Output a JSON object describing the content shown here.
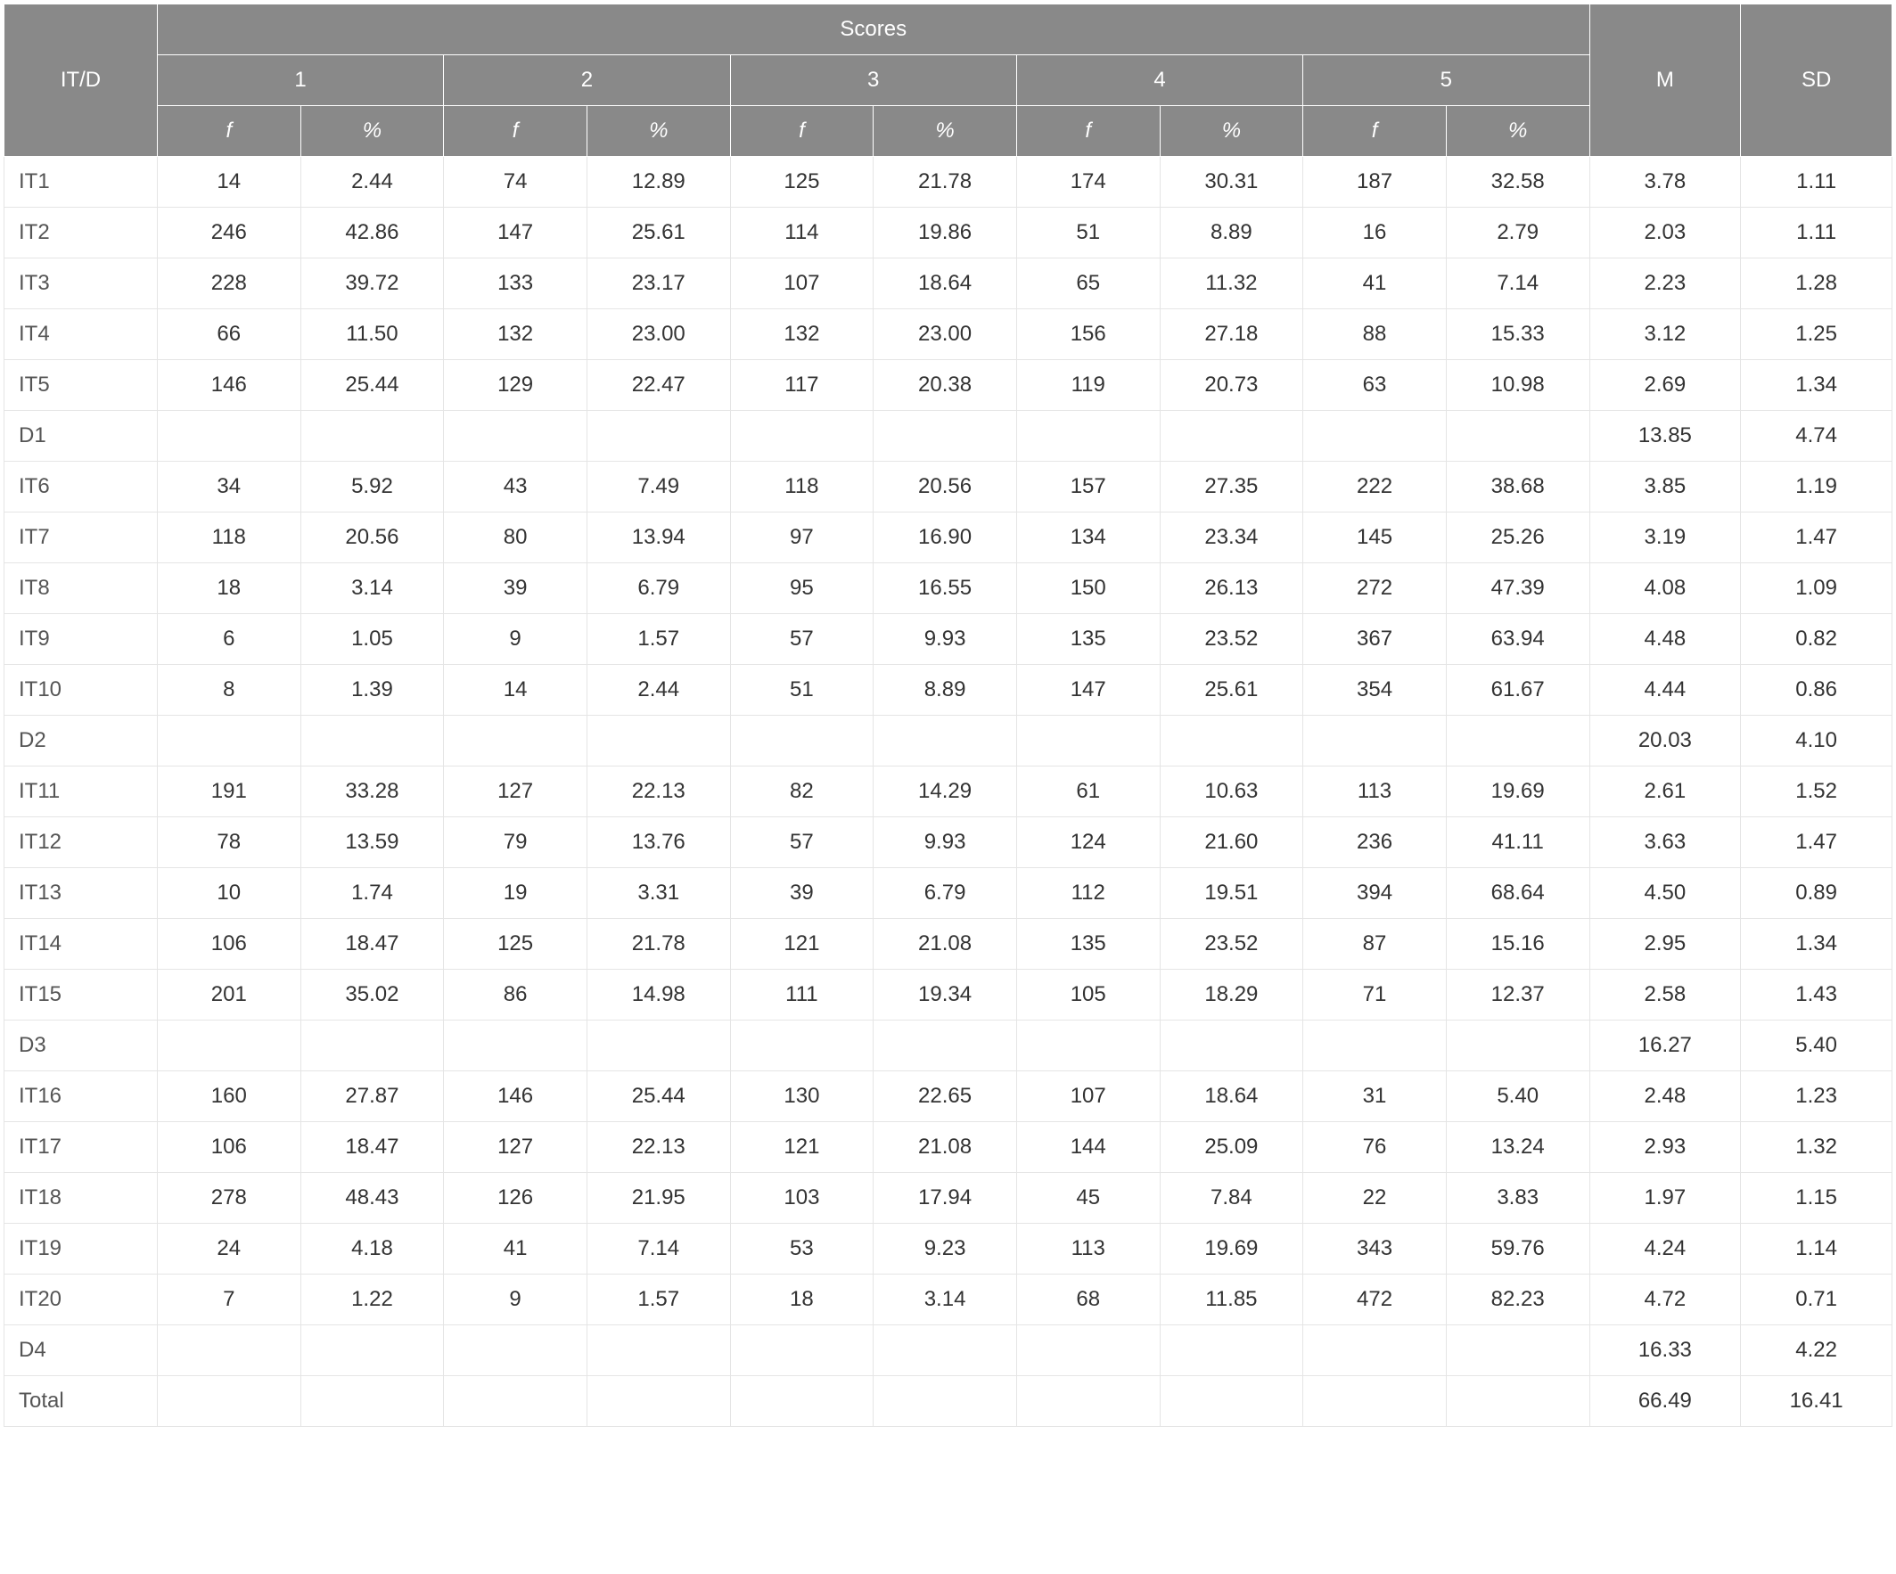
{
  "header": {
    "corner": "IT/D",
    "scores": "Scores",
    "m": "M",
    "sd": "SD",
    "groups": [
      "1",
      "2",
      "3",
      "4",
      "5"
    ],
    "sub": {
      "f": "f",
      "pct": "%"
    }
  },
  "rows": [
    {
      "label": "IT1",
      "cells": [
        "14",
        "2.44",
        "74",
        "12.89",
        "125",
        "21.78",
        "174",
        "30.31",
        "187",
        "32.58"
      ],
      "m": "3.78",
      "sd": "1.11"
    },
    {
      "label": "IT2",
      "cells": [
        "246",
        "42.86",
        "147",
        "25.61",
        "114",
        "19.86",
        "51",
        "8.89",
        "16",
        "2.79"
      ],
      "m": "2.03",
      "sd": "1.11"
    },
    {
      "label": "IT3",
      "cells": [
        "228",
        "39.72",
        "133",
        "23.17",
        "107",
        "18.64",
        "65",
        "11.32",
        "41",
        "7.14"
      ],
      "m": "2.23",
      "sd": "1.28"
    },
    {
      "label": "IT4",
      "cells": [
        "66",
        "11.50",
        "132",
        "23.00",
        "132",
        "23.00",
        "156",
        "27.18",
        "88",
        "15.33"
      ],
      "m": "3.12",
      "sd": "1.25"
    },
    {
      "label": "IT5",
      "cells": [
        "146",
        "25.44",
        "129",
        "22.47",
        "117",
        "20.38",
        "119",
        "20.73",
        "63",
        "10.98"
      ],
      "m": "2.69",
      "sd": "1.34"
    },
    {
      "label": "D1",
      "cells": [
        "",
        "",
        "",
        "",
        "",
        "",
        "",
        "",
        "",
        ""
      ],
      "m": "13.85",
      "sd": "4.74"
    },
    {
      "label": "IT6",
      "cells": [
        "34",
        "5.92",
        "43",
        "7.49",
        "118",
        "20.56",
        "157",
        "27.35",
        "222",
        "38.68"
      ],
      "m": "3.85",
      "sd": "1.19"
    },
    {
      "label": "IT7",
      "cells": [
        "118",
        "20.56",
        "80",
        "13.94",
        "97",
        "16.90",
        "134",
        "23.34",
        "145",
        "25.26"
      ],
      "m": "3.19",
      "sd": "1.47"
    },
    {
      "label": "IT8",
      "cells": [
        "18",
        "3.14",
        "39",
        "6.79",
        "95",
        "16.55",
        "150",
        "26.13",
        "272",
        "47.39"
      ],
      "m": "4.08",
      "sd": "1.09"
    },
    {
      "label": "IT9",
      "cells": [
        "6",
        "1.05",
        "9",
        "1.57",
        "57",
        "9.93",
        "135",
        "23.52",
        "367",
        "63.94"
      ],
      "m": "4.48",
      "sd": "0.82"
    },
    {
      "label": "IT10",
      "cells": [
        "8",
        "1.39",
        "14",
        "2.44",
        "51",
        "8.89",
        "147",
        "25.61",
        "354",
        "61.67"
      ],
      "m": "4.44",
      "sd": "0.86"
    },
    {
      "label": "D2",
      "cells": [
        "",
        "",
        "",
        "",
        "",
        "",
        "",
        "",
        "",
        ""
      ],
      "m": "20.03",
      "sd": "4.10"
    },
    {
      "label": "IT11",
      "cells": [
        "191",
        "33.28",
        "127",
        "22.13",
        "82",
        "14.29",
        "61",
        "10.63",
        "113",
        "19.69"
      ],
      "m": "2.61",
      "sd": "1.52"
    },
    {
      "label": "IT12",
      "cells": [
        "78",
        "13.59",
        "79",
        "13.76",
        "57",
        "9.93",
        "124",
        "21.60",
        "236",
        "41.11"
      ],
      "m": "3.63",
      "sd": "1.47"
    },
    {
      "label": "IT13",
      "cells": [
        "10",
        "1.74",
        "19",
        "3.31",
        "39",
        "6.79",
        "112",
        "19.51",
        "394",
        "68.64"
      ],
      "m": "4.50",
      "sd": "0.89"
    },
    {
      "label": "IT14",
      "cells": [
        "106",
        "18.47",
        "125",
        "21.78",
        "121",
        "21.08",
        "135",
        "23.52",
        "87",
        "15.16"
      ],
      "m": "2.95",
      "sd": "1.34"
    },
    {
      "label": "IT15",
      "cells": [
        "201",
        "35.02",
        "86",
        "14.98",
        "111",
        "19.34",
        "105",
        "18.29",
        "71",
        "12.37"
      ],
      "m": "2.58",
      "sd": "1.43"
    },
    {
      "label": "D3",
      "cells": [
        "",
        "",
        "",
        "",
        "",
        "",
        "",
        "",
        "",
        ""
      ],
      "m": "16.27",
      "sd": "5.40"
    },
    {
      "label": "IT16",
      "cells": [
        "160",
        "27.87",
        "146",
        "25.44",
        "130",
        "22.65",
        "107",
        "18.64",
        "31",
        "5.40"
      ],
      "m": "2.48",
      "sd": "1.23"
    },
    {
      "label": "IT17",
      "cells": [
        "106",
        "18.47",
        "127",
        "22.13",
        "121",
        "21.08",
        "144",
        "25.09",
        "76",
        "13.24"
      ],
      "m": "2.93",
      "sd": "1.32"
    },
    {
      "label": "IT18",
      "cells": [
        "278",
        "48.43",
        "126",
        "21.95",
        "103",
        "17.94",
        "45",
        "7.84",
        "22",
        "3.83"
      ],
      "m": "1.97",
      "sd": "1.15"
    },
    {
      "label": "IT19",
      "cells": [
        "24",
        "4.18",
        "41",
        "7.14",
        "53",
        "9.23",
        "113",
        "19.69",
        "343",
        "59.76"
      ],
      "m": "4.24",
      "sd": "1.14"
    },
    {
      "label": "IT20",
      "cells": [
        "7",
        "1.22",
        "9",
        "1.57",
        "18",
        "3.14",
        "68",
        "11.85",
        "472",
        "82.23"
      ],
      "m": "4.72",
      "sd": "0.71"
    },
    {
      "label": "D4",
      "cells": [
        "",
        "",
        "",
        "",
        "",
        "",
        "",
        "",
        "",
        ""
      ],
      "m": "16.33",
      "sd": "4.22"
    },
    {
      "label": "Total",
      "cells": [
        "",
        "",
        "",
        "",
        "",
        "",
        "",
        "",
        "",
        ""
      ],
      "m": "66.49",
      "sd": "16.41"
    }
  ]
}
